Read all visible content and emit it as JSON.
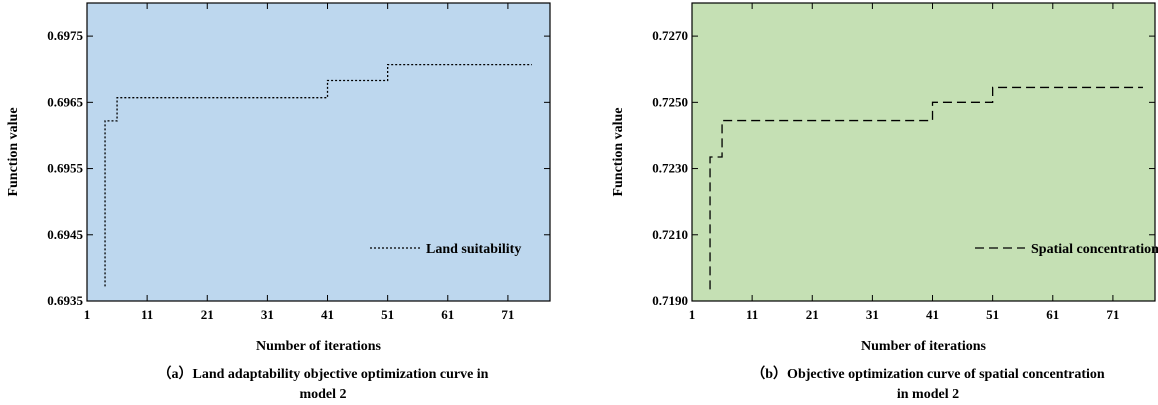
{
  "chart_data": [
    {
      "type": "line",
      "caption_line1": "（a）Land adaptability objective optimization curve in",
      "caption_line2": "model 2",
      "xlabel": "Number of iterations",
      "ylabel": "Function value",
      "xlim": [
        1,
        78
      ],
      "ylim": [
        0.6935,
        0.698
      ],
      "x_ticks": [
        "1",
        "11",
        "21",
        "31",
        "41",
        "51",
        "61",
        "71"
      ],
      "y_ticks": [
        "0.6935",
        "0.6945",
        "0.6955",
        "0.6965",
        "0.6975"
      ],
      "background": "#bdd7ee",
      "legend_position": "bottom-right",
      "series": [
        {
          "name": "Land suitability",
          "style": "dotted",
          "step_points": [
            [
              4,
              0.69372
            ],
            [
              4,
              0.69622
            ],
            [
              6,
              0.69622
            ],
            [
              6,
              0.69657
            ],
            [
              41,
              0.69657
            ],
            [
              41,
              0.69683
            ],
            [
              51,
              0.69683
            ],
            [
              51,
              0.69707
            ],
            [
              75,
              0.69707
            ]
          ]
        }
      ]
    },
    {
      "type": "line",
      "caption_line1": "（b）Objective optimization curve of spatial concentration",
      "caption_line2": "in model 2",
      "xlabel": "Number of iterations",
      "ylabel": "Function value",
      "xlim": [
        1,
        78
      ],
      "ylim": [
        0.719,
        0.728
      ],
      "x_ticks": [
        "1",
        "11",
        "21",
        "31",
        "41",
        "51",
        "61",
        "71"
      ],
      "y_ticks": [
        "0.7190",
        "0.7210",
        "0.7230",
        "0.7250",
        "0.7270"
      ],
      "background": "#c5e0b4",
      "legend_position": "bottom-right",
      "series": [
        {
          "name": "Spatial concentration",
          "style": "dashed",
          "step_points": [
            [
              4,
              0.71935
            ],
            [
              4,
              0.72335
            ],
            [
              6,
              0.72335
            ],
            [
              6,
              0.72445
            ],
            [
              41,
              0.72445
            ],
            [
              41,
              0.725
            ],
            [
              51,
              0.725
            ],
            [
              51,
              0.72545
            ],
            [
              76,
              0.72545
            ]
          ]
        }
      ]
    }
  ]
}
